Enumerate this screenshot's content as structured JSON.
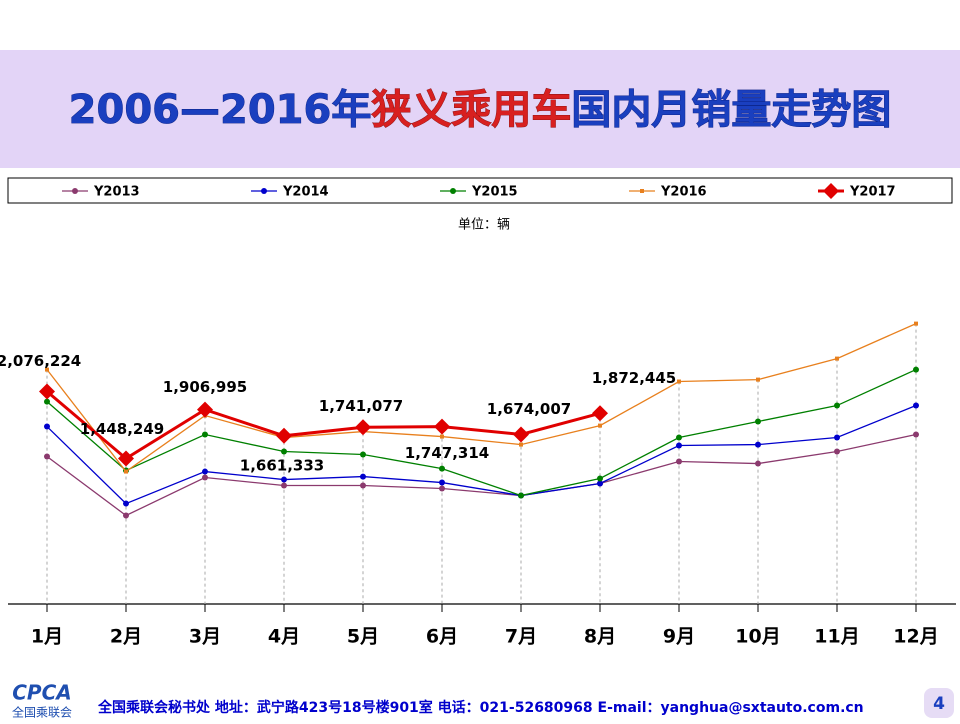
{
  "chart_data": {
    "type": "line",
    "title": [
      "2006—2016年",
      "狭义乘用车",
      "国内月销量走势图"
    ],
    "unit": "单位：辆",
    "categories": [
      "1月",
      "2月",
      "3月",
      "4月",
      "5月",
      "6月",
      "7月",
      "8月",
      "9月",
      "10月",
      "11月",
      "12月"
    ],
    "ylim": [
      0,
      3000000
    ],
    "series": [
      {
        "name": "Y2013",
        "color": "#8b3a6e",
        "values": [
          1467000,
          914000,
          1270000,
          1195000,
          1195000,
          1167000,
          1101000,
          1214000,
          1420000,
          1401000,
          1514000,
          1673000
        ]
      },
      {
        "name": "Y2014",
        "color": "#0000cc",
        "values": [
          1748000,
          1026000,
          1326000,
          1251000,
          1279000,
          1223000,
          1101000,
          1214000,
          1570000,
          1579000,
          1645000,
          1945000
        ]
      },
      {
        "name": "Y2015",
        "color": "#008000",
        "values": [
          1982000,
          1336000,
          1673000,
          1514000,
          1486000,
          1354000,
          1101000,
          1261000,
          1645000,
          1795000,
          1945000,
          2282000
        ]
      },
      {
        "name": "Y2016",
        "color": "#e8801e",
        "values": [
          2282000,
          1326000,
          1851000,
          1645000,
          1701000,
          1654000,
          1579000,
          1757000,
          2170000,
          2188000,
          2385000,
          2713000
        ]
      },
      {
        "name": "Y2017",
        "color": "#e00000",
        "values": [
          2076224,
          1448249,
          1906995,
          1661333,
          1741077,
          1747314,
          1674007,
          1872445,
          null,
          null,
          null,
          null
        ],
        "value_labels": [
          "2,076,224",
          "1,448,249",
          "1,906,995",
          "1,661,333",
          "1,741,077",
          "1,747,314",
          "1,674,007",
          "1,872,445",
          null,
          null,
          null,
          null
        ]
      }
    ]
  },
  "footer": {
    "logo": "CPCA",
    "logo_sub": "全国乘联会",
    "text": "全国乘联会秘书处  地址：武宁路423号18号楼901室    电话：021-52680968  E-mail：yanghua@sxtauto.com.cn",
    "page_number": "4"
  }
}
